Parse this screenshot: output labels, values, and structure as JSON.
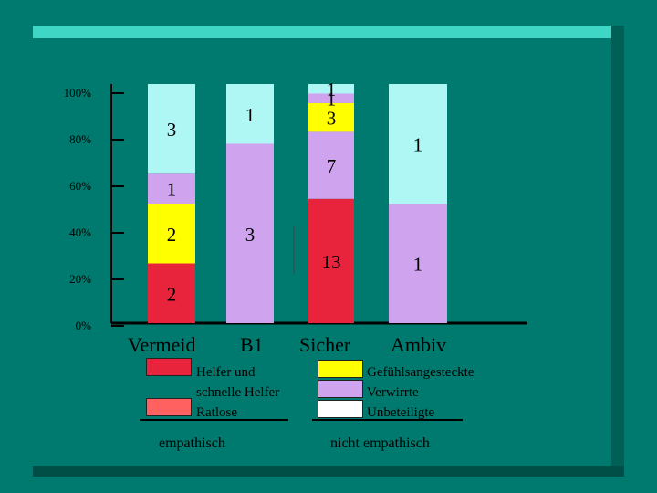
{
  "chart_data": {
    "type": "bar",
    "stacked": true,
    "normalized_to": 100,
    "categories": [
      "Vermeid",
      "B1",
      "Sicher",
      "Ambiv"
    ],
    "y_tick_labels": [
      "100%",
      "80%",
      "60%",
      "40%",
      "20%",
      "0%"
    ],
    "ylim": [
      0,
      100
    ],
    "segments": [
      {
        "category": "Vermeid",
        "color": "#e8243c",
        "value": 2,
        "label": "2"
      },
      {
        "category": "Vermeid",
        "color": "#ffff00",
        "value": 2,
        "label": "2"
      },
      {
        "category": "Vermeid",
        "color": "#cfa3ee",
        "value": 1,
        "label": "1"
      },
      {
        "category": "Vermeid",
        "color": "#aef7f4",
        "value": 3,
        "label": "3"
      },
      {
        "category": "B1",
        "color": "#cfa3ee",
        "value": 3,
        "label": "3"
      },
      {
        "category": "B1",
        "color": "#aef7f4",
        "value": 1,
        "label": "1"
      },
      {
        "category": "Sicher",
        "color": "#e8243c",
        "value": 13,
        "label": "13"
      },
      {
        "category": "Sicher",
        "color": "#cfa3ee",
        "value": 7,
        "label": "7"
      },
      {
        "category": "Sicher",
        "color": "#ffff00",
        "value": 3,
        "label": "3"
      },
      {
        "category": "Sicher",
        "color": "#cfa3ee",
        "value": 1,
        "label": "1"
      },
      {
        "category": "Sicher",
        "color": "#aef7f4",
        "value": 1,
        "label": "1"
      },
      {
        "category": "Ambiv",
        "color": "#cfa3ee",
        "value": 1,
        "label": "1"
      },
      {
        "category": "Ambiv",
        "color": "#aef7f4",
        "value": 1,
        "label": "1"
      }
    ],
    "legend": {
      "empathisch": {
        "title": "empathisch",
        "items": [
          {
            "color": "#e8243c",
            "text": "Helfer und"
          },
          {
            "color": "#ff6060",
            "text": "schnelle Helfer"
          },
          {
            "color": null,
            "text": "Ratlose"
          }
        ]
      },
      "nicht_empathisch": {
        "title": "nicht empathisch",
        "items": [
          {
            "color": "#ffff00",
            "text": "Gefühlsangesteckte"
          },
          {
            "color": "#cfa3ee",
            "text": "Verwirrte"
          },
          {
            "color": "#ffffff",
            "text": "Unbeteiligte"
          }
        ]
      }
    },
    "colors": {
      "background": "#007a6e",
      "red": "#e8243c",
      "light_red": "#ff6060",
      "yellow": "#ffff00",
      "lavender": "#cfa3ee",
      "cyan": "#aef7f4"
    }
  }
}
